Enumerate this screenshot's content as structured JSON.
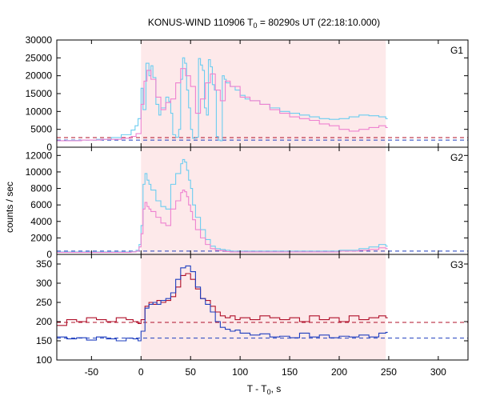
{
  "title": "KONUS-WIND 110906 T",
  "title_sub": "0",
  "title_rest": " = 80290s UT (22:18:10.000)",
  "ylabel": "counts / sec",
  "xlabel_main": "T - T",
  "xlabel_sub": "0",
  "xlabel_rest": ", s",
  "colors": {
    "shade": "#fde9ea",
    "cyan": "#6ccdf0",
    "pink": "#ee82d0",
    "blue": "#1f3fbf",
    "darkred": "#b0102a"
  },
  "chart_data": {
    "type": "line",
    "x_axis": {
      "lim": [
        -85,
        330
      ],
      "ticks": [
        -50,
        0,
        50,
        100,
        150,
        200,
        250,
        300
      ]
    },
    "shaded_interval": [
      0,
      247
    ],
    "panels": [
      {
        "label": "G1",
        "ylim": [
          0,
          30000
        ],
        "yticks": [
          0,
          5000,
          10000,
          15000,
          20000,
          25000,
          30000
        ],
        "background_levels": [
          2700,
          2000
        ],
        "series": [
          {
            "name": "",
            "color": "cyan",
            "x": [
              -85,
              -75,
              -60,
              -45,
              -30,
              -20,
              -10,
              -6,
              -3,
              0,
              2,
              5,
              8,
              10,
              12,
              15,
              18,
              20,
              25,
              28,
              30,
              32,
              35,
              38,
              40,
              42,
              44,
              46,
              48,
              50,
              52,
              55,
              58,
              60,
              62,
              64,
              66,
              68,
              70,
              72,
              74,
              76,
              78,
              80,
              82,
              84,
              86,
              90,
              95,
              100,
              105,
              110,
              120,
              130,
              140,
              150,
              160,
              170,
              180,
              190,
              200,
              210,
              220,
              230,
              240,
              247
            ],
            "y": [
              1800,
              1900,
              2000,
              2200,
              2700,
              3500,
              4800,
              6000,
              8000,
              16500,
              10500,
              23500,
              20000,
              22800,
              19500,
              12000,
              9000,
              11000,
              14000,
              12800,
              9500,
              3500,
              2800,
              5000,
              19000,
              25000,
              23500,
              16000,
              11000,
              5000,
              2500,
              2800,
              24800,
              23000,
              21500,
              11000,
              9000,
              24500,
              22500,
              17500,
              16000,
              3000,
              2000,
              1800,
              20000,
              19000,
              18000,
              17000,
              16000,
              14500,
              13500,
              13000,
              12000,
              11000,
              10000,
              9500,
              9000,
              8500,
              8000,
              7800,
              8000,
              8500,
              9000,
              8800,
              8500,
              8000
            ]
          },
          {
            "name": "",
            "color": "pink",
            "x": [
              -85,
              -60,
              -40,
              -20,
              -10,
              -5,
              0,
              3,
              6,
              10,
              15,
              20,
              25,
              30,
              35,
              40,
              45,
              50,
              55,
              60,
              65,
              70,
              75,
              80,
              85,
              90,
              100,
              110,
              120,
              130,
              140,
              150,
              160,
              170,
              180,
              190,
              200,
              210,
              220,
              230,
              240,
              247
            ],
            "y": [
              1800,
              2000,
              2200,
              2500,
              3000,
              3800,
              12000,
              18500,
              21500,
              19000,
              14000,
              10500,
              12500,
              13500,
              18000,
              22000,
              20000,
              17000,
              9500,
              13500,
              18000,
              20500,
              16000,
              13000,
              18500,
              17000,
              14000,
              13000,
              12000,
              10500,
              9500,
              8500,
              8000,
              7500,
              6500,
              6000,
              5000,
              4500,
              5000,
              5500,
              6000,
              5500
            ]
          }
        ]
      },
      {
        "label": "G2",
        "ylim": [
          0,
          13000
        ],
        "yticks": [
          0,
          2000,
          4000,
          6000,
          8000,
          10000,
          12000
        ],
        "background_levels": [
          400
        ],
        "series": [
          {
            "name": "",
            "color": "cyan",
            "x": [
              -85,
              -60,
              -40,
              -20,
              -10,
              -5,
              -2,
              0,
              2,
              4,
              6,
              8,
              10,
              15,
              20,
              25,
              30,
              35,
              40,
              42,
              44,
              46,
              48,
              50,
              52,
              55,
              60,
              65,
              70,
              75,
              80,
              85,
              90,
              100,
              110,
              120,
              150,
              180,
              200,
              220,
              230,
              240,
              247
            ],
            "y": [
              300,
              300,
              300,
              300,
              350,
              500,
              1200,
              3500,
              8500,
              9800,
              9000,
              8500,
              7800,
              6500,
              5800,
              5500,
              8500,
              9800,
              11000,
              11500,
              11200,
              10200,
              9000,
              8000,
              6000,
              4500,
              3000,
              1800,
              1000,
              700,
              600,
              500,
              400,
              400,
              400,
              400,
              400,
              400,
              500,
              700,
              900,
              1200,
              1000
            ]
          },
          {
            "name": "",
            "color": "pink",
            "x": [
              -85,
              -60,
              -40,
              -20,
              -10,
              -5,
              -2,
              0,
              2,
              4,
              6,
              8,
              10,
              15,
              20,
              25,
              30,
              35,
              40,
              42,
              44,
              46,
              48,
              50,
              52,
              55,
              60,
              65,
              70,
              75,
              80,
              85,
              90,
              100,
              110,
              120,
              150,
              180,
              200,
              220,
              230,
              240,
              247
            ],
            "y": [
              250,
              250,
              250,
              250,
              300,
              400,
              900,
              2500,
              5500,
              6300,
              5800,
              5500,
              5200,
              4500,
              3800,
              3500,
              5500,
              6500,
              7500,
              7800,
              7600,
              7000,
              6000,
              5200,
              4200,
              3000,
              2000,
              1200,
              700,
              500,
              450,
              350,
              300,
              300,
              300,
              300,
              300,
              300,
              400,
              500,
              600,
              800,
              700
            ]
          }
        ]
      },
      {
        "label": "G3",
        "ylim": [
          100,
          375
        ],
        "yticks": [
          100,
          150,
          200,
          250,
          300,
          350
        ],
        "background_levels": [
          198,
          157
        ],
        "series": [
          {
            "name": "",
            "color": "darkred",
            "x": [
              -85,
              -75,
              -65,
              -55,
              -45,
              -35,
              -25,
              -15,
              -8,
              -3,
              0,
              4,
              8,
              12,
              16,
              20,
              25,
              30,
              35,
              40,
              45,
              50,
              55,
              60,
              65,
              70,
              75,
              80,
              85,
              90,
              95,
              100,
              110,
              120,
              130,
              140,
              150,
              160,
              170,
              180,
              190,
              200,
              210,
              220,
              230,
              240,
              247
            ],
            "y": [
              190,
              205,
              200,
              210,
              205,
              200,
              210,
              205,
              200,
              195,
              205,
              240,
              250,
              245,
              255,
              250,
              255,
              265,
              290,
              320,
              325,
              310,
              285,
              260,
              255,
              240,
              225,
              215,
              210,
              215,
              205,
              210,
              205,
              215,
              210,
              205,
              210,
              200,
              215,
              205,
              210,
              200,
              215,
              205,
              210,
              215,
              210
            ]
          },
          {
            "name": "",
            "color": "blue",
            "x": [
              -85,
              -75,
              -65,
              -55,
              -45,
              -35,
              -25,
              -15,
              -8,
              -3,
              0,
              4,
              8,
              12,
              16,
              20,
              25,
              30,
              35,
              40,
              45,
              50,
              55,
              60,
              65,
              70,
              75,
              80,
              85,
              90,
              95,
              100,
              110,
              120,
              130,
              140,
              150,
              160,
              170,
              180,
              190,
              200,
              210,
              220,
              230,
              240,
              247
            ],
            "y": [
              160,
              155,
              158,
              152,
              160,
              155,
              150,
              157,
              155,
              150,
              175,
              235,
              245,
              250,
              245,
              255,
              260,
              275,
              310,
              340,
              345,
              330,
              290,
              260,
              245,
              225,
              200,
              185,
              180,
              175,
              178,
              170,
              165,
              168,
              160,
              162,
              158,
              170,
              160,
              165,
              158,
              162,
              160,
              165,
              160,
              170,
              172
            ]
          }
        ]
      }
    ]
  }
}
